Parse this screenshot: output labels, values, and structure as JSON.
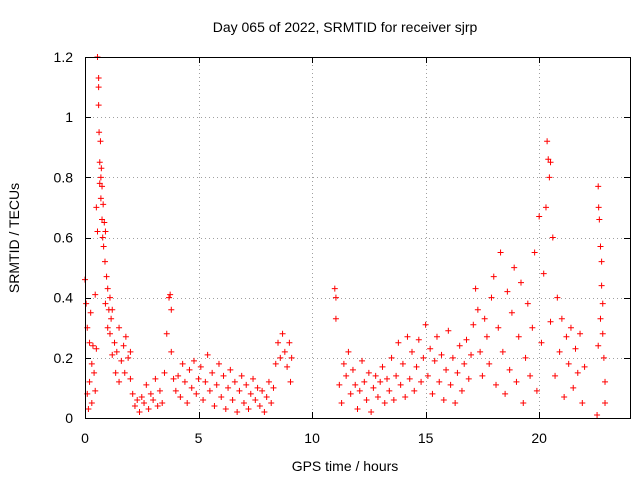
{
  "chart_data": {
    "type": "scatter",
    "title": "Day 065 of 2022, SRMTID for receiver sjrp",
    "xlabel": "GPS time / hours",
    "ylabel": "SRMTID / TECUs",
    "xlim": [
      0,
      24
    ],
    "ylim": [
      0,
      1.2
    ],
    "x_ticks": [
      0,
      5,
      10,
      15,
      20
    ],
    "x_tick_labels": [
      "0",
      "5",
      "10",
      "15",
      "20"
    ],
    "y_ticks": [
      0,
      0.2,
      0.4,
      0.6,
      0.8,
      1.0,
      1.2
    ],
    "y_tick_labels": [
      "0",
      "0.2",
      "0.4",
      "0.6",
      "0.8",
      "1",
      "1.2"
    ],
    "grid": true,
    "marker": "+",
    "color": "#ff0000",
    "series": [
      {
        "name": "SRMTID",
        "points": [
          [
            0.0,
            0.46
          ],
          [
            0.05,
            0.38
          ],
          [
            0.1,
            0.3
          ],
          [
            0.1,
            0.08
          ],
          [
            0.15,
            0.03
          ],
          [
            0.2,
            0.25
          ],
          [
            0.2,
            0.12
          ],
          [
            0.25,
            0.35
          ],
          [
            0.3,
            0.05
          ],
          [
            0.3,
            0.18
          ],
          [
            0.35,
            0.24
          ],
          [
            0.4,
            0.15
          ],
          [
            0.45,
            0.41
          ],
          [
            0.45,
            0.09
          ],
          [
            0.5,
            0.23
          ],
          [
            0.5,
            0.7
          ],
          [
            0.55,
            1.2
          ],
          [
            0.55,
            0.62
          ],
          [
            0.6,
            1.13
          ],
          [
            0.6,
            1.1
          ],
          [
            0.6,
            1.04
          ],
          [
            0.62,
            0.95
          ],
          [
            0.65,
            0.85
          ],
          [
            0.65,
            0.78
          ],
          [
            0.68,
            0.92
          ],
          [
            0.7,
            0.8
          ],
          [
            0.7,
            0.73
          ],
          [
            0.72,
            0.83
          ],
          [
            0.75,
            0.77
          ],
          [
            0.75,
            0.66
          ],
          [
            0.78,
            0.6
          ],
          [
            0.8,
            0.71
          ],
          [
            0.82,
            0.57
          ],
          [
            0.85,
            0.65
          ],
          [
            0.88,
            0.52
          ],
          [
            0.9,
            0.62
          ],
          [
            0.9,
            0.38
          ],
          [
            0.95,
            0.47
          ],
          [
            1.0,
            0.43
          ],
          [
            1.0,
            0.3
          ],
          [
            1.05,
            0.36
          ],
          [
            1.1,
            0.4
          ],
          [
            1.1,
            0.28
          ],
          [
            1.15,
            0.33
          ],
          [
            1.2,
            0.21
          ],
          [
            1.2,
            0.36
          ],
          [
            1.3,
            0.25
          ],
          [
            1.35,
            0.15
          ],
          [
            1.4,
            0.22
          ],
          [
            1.5,
            0.3
          ],
          [
            1.5,
            0.12
          ],
          [
            1.6,
            0.19
          ],
          [
            1.7,
            0.24
          ],
          [
            1.75,
            0.15
          ],
          [
            1.8,
            0.27
          ],
          [
            1.9,
            0.2
          ],
          [
            2.0,
            0.13
          ],
          [
            2.0,
            0.22
          ],
          [
            2.1,
            0.08
          ],
          [
            2.2,
            0.04
          ],
          [
            2.3,
            0.06
          ],
          [
            2.4,
            0.02
          ],
          [
            2.5,
            0.07
          ],
          [
            2.6,
            0.05
          ],
          [
            2.7,
            0.11
          ],
          [
            2.8,
            0.03
          ],
          [
            2.9,
            0.08
          ],
          [
            3.0,
            0.06
          ],
          [
            3.1,
            0.13
          ],
          [
            3.2,
            0.04
          ],
          [
            3.3,
            0.09
          ],
          [
            3.4,
            0.05
          ],
          [
            3.5,
            0.15
          ],
          [
            3.6,
            0.28
          ],
          [
            3.7,
            0.4
          ],
          [
            3.75,
            0.41
          ],
          [
            3.8,
            0.36
          ],
          [
            3.8,
            0.22
          ],
          [
            3.9,
            0.13
          ],
          [
            4.0,
            0.09
          ],
          [
            4.1,
            0.14
          ],
          [
            4.2,
            0.07
          ],
          [
            4.3,
            0.18
          ],
          [
            4.4,
            0.12
          ],
          [
            4.5,
            0.05
          ],
          [
            4.6,
            0.16
          ],
          [
            4.7,
            0.1
          ],
          [
            4.8,
            0.19
          ],
          [
            4.9,
            0.08
          ],
          [
            5.0,
            0.13
          ],
          [
            5.1,
            0.17
          ],
          [
            5.2,
            0.06
          ],
          [
            5.3,
            0.12
          ],
          [
            5.4,
            0.21
          ],
          [
            5.5,
            0.09
          ],
          [
            5.6,
            0.15
          ],
          [
            5.7,
            0.04
          ],
          [
            5.8,
            0.11
          ],
          [
            5.9,
            0.18
          ],
          [
            6.0,
            0.07
          ],
          [
            6.1,
            0.14
          ],
          [
            6.2,
            0.03
          ],
          [
            6.3,
            0.1
          ],
          [
            6.4,
            0.16
          ],
          [
            6.5,
            0.06
          ],
          [
            6.6,
            0.12
          ],
          [
            6.7,
            0.02
          ],
          [
            6.8,
            0.09
          ],
          [
            6.9,
            0.14
          ],
          [
            7.0,
            0.05
          ],
          [
            7.1,
            0.11
          ],
          [
            7.2,
            0.03
          ],
          [
            7.3,
            0.08
          ],
          [
            7.4,
            0.13
          ],
          [
            7.5,
            0.06
          ],
          [
            7.6,
            0.1
          ],
          [
            7.7,
            0.04
          ],
          [
            7.8,
            0.09
          ],
          [
            7.9,
            0.02
          ],
          [
            8.0,
            0.07
          ],
          [
            8.1,
            0.12
          ],
          [
            8.2,
            0.05
          ],
          [
            8.3,
            0.1
          ],
          [
            8.4,
            0.18
          ],
          [
            8.5,
            0.25
          ],
          [
            8.6,
            0.2
          ],
          [
            8.7,
            0.28
          ],
          [
            8.8,
            0.22
          ],
          [
            8.9,
            0.17
          ],
          [
            9.0,
            0.25
          ],
          [
            9.05,
            0.12
          ],
          [
            9.1,
            0.2
          ],
          [
            11.0,
            0.43
          ],
          [
            11.05,
            0.4
          ],
          [
            11.05,
            0.33
          ],
          [
            11.2,
            0.11
          ],
          [
            11.3,
            0.05
          ],
          [
            11.4,
            0.18
          ],
          [
            11.5,
            0.14
          ],
          [
            11.6,
            0.22
          ],
          [
            11.7,
            0.08
          ],
          [
            11.8,
            0.16
          ],
          [
            11.9,
            0.11
          ],
          [
            12.0,
            0.03
          ],
          [
            12.1,
            0.09
          ],
          [
            12.2,
            0.19
          ],
          [
            12.3,
            0.12
          ],
          [
            12.4,
            0.06
          ],
          [
            12.5,
            0.15
          ],
          [
            12.6,
            0.02
          ],
          [
            12.7,
            0.1
          ],
          [
            12.8,
            0.14
          ],
          [
            12.9,
            0.07
          ],
          [
            13.0,
            0.12
          ],
          [
            13.1,
            0.17
          ],
          [
            13.2,
            0.05
          ],
          [
            13.3,
            0.13
          ],
          [
            13.4,
            0.09
          ],
          [
            13.5,
            0.2
          ],
          [
            13.6,
            0.06
          ],
          [
            13.7,
            0.14
          ],
          [
            13.8,
            0.25
          ],
          [
            13.9,
            0.11
          ],
          [
            14.0,
            0.18
          ],
          [
            14.1,
            0.07
          ],
          [
            14.2,
            0.27
          ],
          [
            14.3,
            0.13
          ],
          [
            14.4,
            0.22
          ],
          [
            14.5,
            0.09
          ],
          [
            14.6,
            0.17
          ],
          [
            14.7,
            0.26
          ],
          [
            14.8,
            0.12
          ],
          [
            14.9,
            0.2
          ],
          [
            15.0,
            0.31
          ],
          [
            15.1,
            0.14
          ],
          [
            15.2,
            0.23
          ],
          [
            15.3,
            0.08
          ],
          [
            15.4,
            0.19
          ],
          [
            15.5,
            0.27
          ],
          [
            15.6,
            0.12
          ],
          [
            15.7,
            0.21
          ],
          [
            15.8,
            0.06
          ],
          [
            15.9,
            0.16
          ],
          [
            16.0,
            0.29
          ],
          [
            16.1,
            0.11
          ],
          [
            16.2,
            0.2
          ],
          [
            16.3,
            0.05
          ],
          [
            16.4,
            0.15
          ],
          [
            16.5,
            0.24
          ],
          [
            16.6,
            0.09
          ],
          [
            16.7,
            0.18
          ],
          [
            16.8,
            0.26
          ],
          [
            16.9,
            0.13
          ],
          [
            17.0,
            0.21
          ],
          [
            17.1,
            0.31
          ],
          [
            17.2,
            0.43
          ],
          [
            17.3,
            0.36
          ],
          [
            17.4,
            0.22
          ],
          [
            17.5,
            0.14
          ],
          [
            17.6,
            0.33
          ],
          [
            17.7,
            0.27
          ],
          [
            17.8,
            0.18
          ],
          [
            17.9,
            0.4
          ],
          [
            18.0,
            0.47
          ],
          [
            18.1,
            0.11
          ],
          [
            18.2,
            0.3
          ],
          [
            18.3,
            0.55
          ],
          [
            18.4,
            0.22
          ],
          [
            18.5,
            0.08
          ],
          [
            18.6,
            0.42
          ],
          [
            18.7,
            0.16
          ],
          [
            18.8,
            0.35
          ],
          [
            18.9,
            0.5
          ],
          [
            19.0,
            0.12
          ],
          [
            19.1,
            0.27
          ],
          [
            19.2,
            0.45
          ],
          [
            19.3,
            0.05
          ],
          [
            19.4,
            0.2
          ],
          [
            19.5,
            0.38
          ],
          [
            19.6,
            0.14
          ],
          [
            19.7,
            0.3
          ],
          [
            19.8,
            0.55
          ],
          [
            19.9,
            0.09
          ],
          [
            20.0,
            0.67
          ],
          [
            20.1,
            0.25
          ],
          [
            20.2,
            0.48
          ],
          [
            20.3,
            0.7
          ],
          [
            20.35,
            0.92
          ],
          [
            20.4,
            0.86
          ],
          [
            20.45,
            0.8
          ],
          [
            20.5,
            0.85
          ],
          [
            20.5,
            0.32
          ],
          [
            20.6,
            0.6
          ],
          [
            20.7,
            0.14
          ],
          [
            20.8,
            0.4
          ],
          [
            20.9,
            0.22
          ],
          [
            21.0,
            0.33
          ],
          [
            21.1,
            0.07
          ],
          [
            21.2,
            0.27
          ],
          [
            21.3,
            0.18
          ],
          [
            21.4,
            0.3
          ],
          [
            21.5,
            0.1
          ],
          [
            21.6,
            0.23
          ],
          [
            21.7,
            0.15
          ],
          [
            21.8,
            0.28
          ],
          [
            21.9,
            0.05
          ],
          [
            22.0,
            0.17
          ],
          [
            22.6,
            0.77
          ],
          [
            22.62,
            0.7
          ],
          [
            22.65,
            0.66
          ],
          [
            22.7,
            0.57
          ],
          [
            22.75,
            0.52
          ],
          [
            22.75,
            0.44
          ],
          [
            22.8,
            0.38
          ],
          [
            22.8,
            0.28
          ],
          [
            22.85,
            0.2
          ],
          [
            22.9,
            0.12
          ],
          [
            22.9,
            0.05
          ],
          [
            22.55,
            0.01
          ],
          [
            22.6,
            0.24
          ],
          [
            22.7,
            0.33
          ]
        ]
      }
    ]
  }
}
